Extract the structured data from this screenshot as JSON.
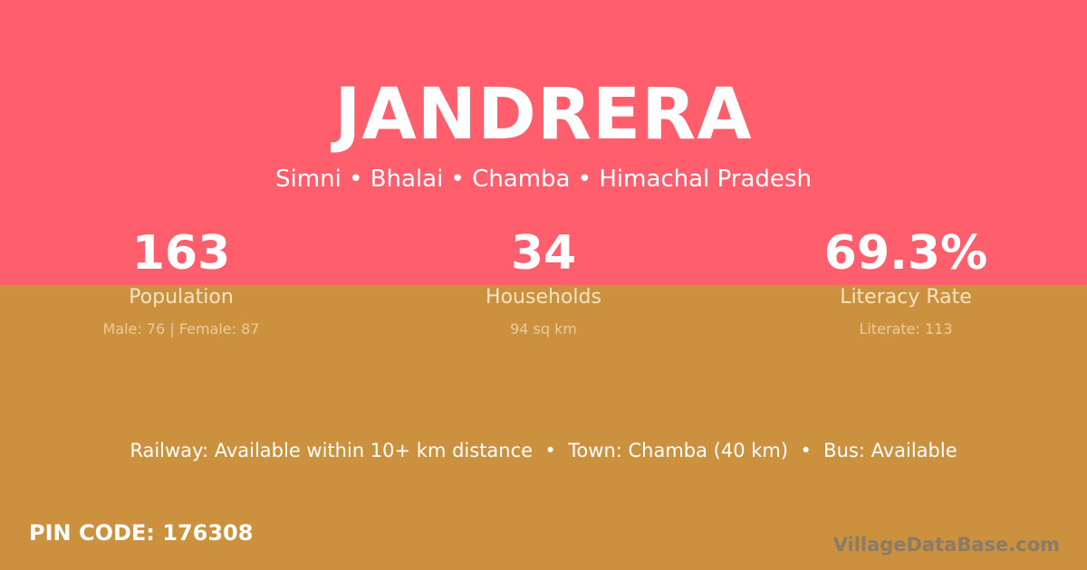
{
  "colors": {
    "top_background": "#FF5F6D",
    "bottom_background": "#CC913E"
  },
  "village": {
    "name": "JANDRERA",
    "location": "Simni • Bhalai • Chamba • Himachal Pradesh"
  },
  "stats": [
    {
      "value": "163",
      "label": "Population",
      "detail": "Male: 76 | Female: 87"
    },
    {
      "value": "34",
      "label": "Households",
      "detail": "94 sq km"
    },
    {
      "value": "69.3%",
      "label": "Literacy Rate",
      "detail": "Literate: 113"
    }
  ],
  "transport": "Railway: Available within 10+ km distance  •  Town: Chamba (40 km)  •  Bus: Available",
  "pin_code": "PIN CODE: 176308",
  "brand": "VillageDataBase.com"
}
